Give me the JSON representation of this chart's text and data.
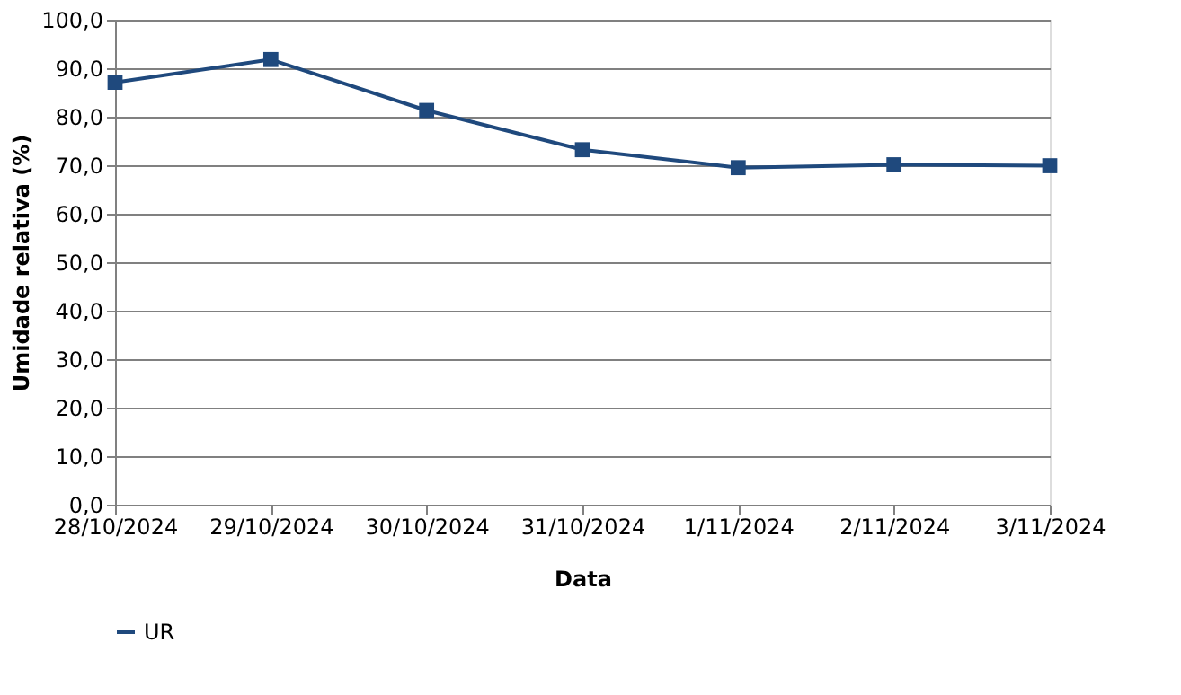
{
  "chart_data": {
    "type": "line",
    "xlabel": "Data",
    "ylabel": "Umidade relativa (%)",
    "categories": [
      "28/10/2024",
      "29/10/2024",
      "30/10/2024",
      "31/10/2024",
      "1/11/2024",
      "2/11/2024",
      "3/11/2024"
    ],
    "series": [
      {
        "name": "UR",
        "color": "#1f497d",
        "values": [
          87.1,
          91.8,
          81.3,
          73.2,
          69.5,
          70.1,
          69.9
        ]
      }
    ],
    "ylim": [
      0,
      100
    ],
    "yticks": [
      {
        "value": 0,
        "label": "0,0"
      },
      {
        "value": 10,
        "label": "10,0"
      },
      {
        "value": 20,
        "label": "20,0"
      },
      {
        "value": 30,
        "label": "30,0"
      },
      {
        "value": 40,
        "label": "40,0"
      },
      {
        "value": 50,
        "label": "50,0"
      },
      {
        "value": 60,
        "label": "60,0"
      },
      {
        "value": 70,
        "label": "70,0"
      },
      {
        "value": 80,
        "label": "80,0"
      },
      {
        "value": 90,
        "label": "90,0"
      },
      {
        "value": 100,
        "label": "100,0"
      }
    ],
    "grid": "y",
    "legend": "bottom",
    "marker": "square",
    "line_style": "solid"
  }
}
